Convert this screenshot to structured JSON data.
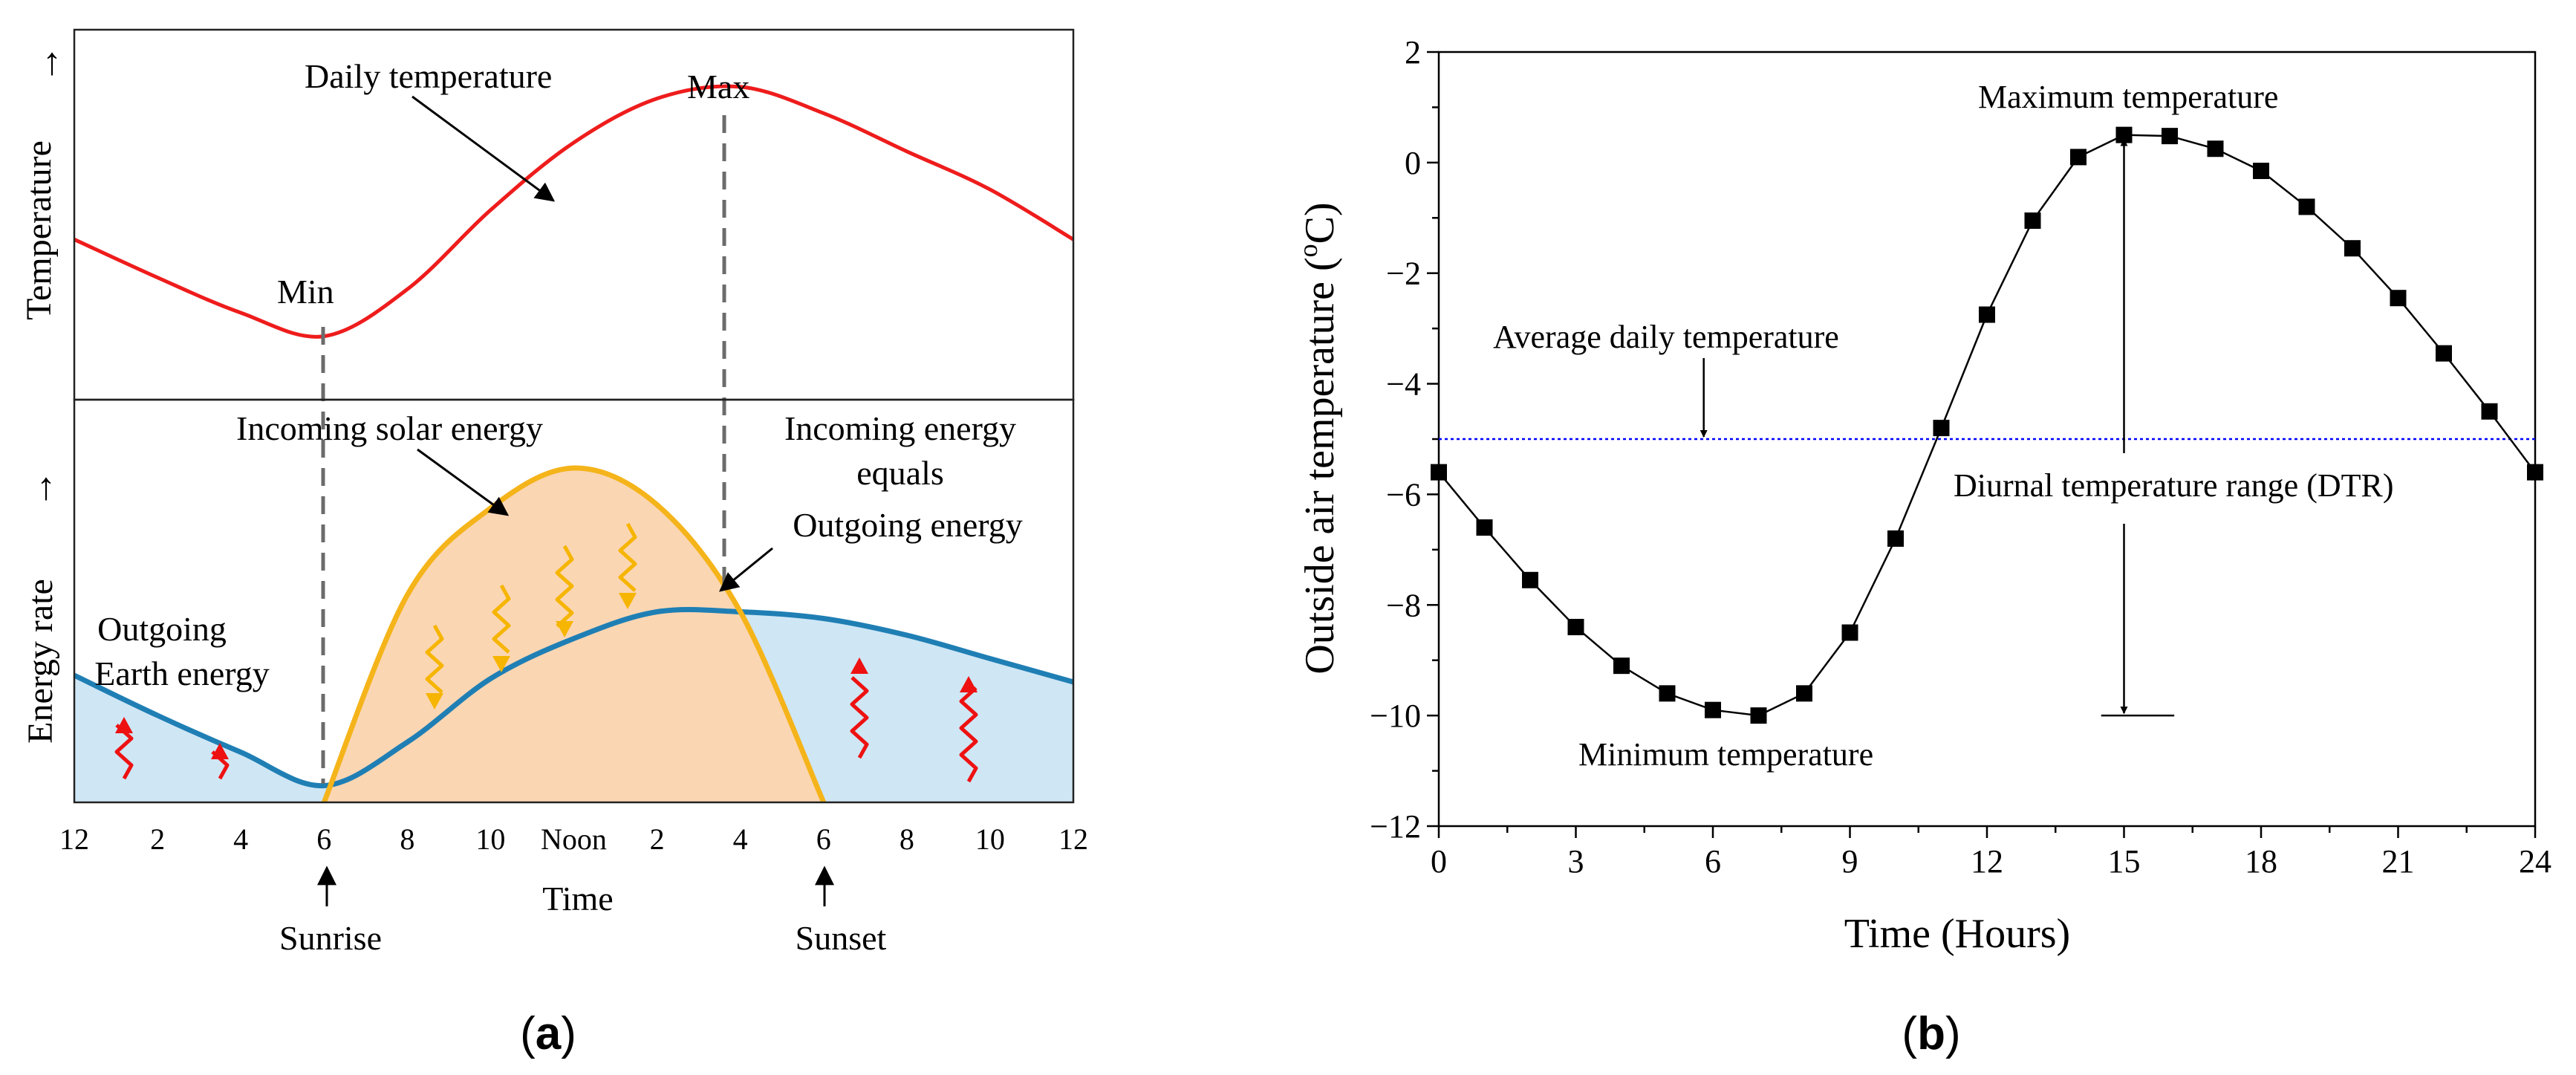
{
  "colors": {
    "temp_curve": "#ee1c1c",
    "solar_fill": "#fbd6b3",
    "solar_stroke": "#f4b41a",
    "earth_fill": "#cfe6f5",
    "earth_stroke": "#1f7fb4",
    "wavy_down": "#f6b500",
    "wavy_up": "#ee1111",
    "avg_line": "#0000ff",
    "dtr_label": "#1010dd"
  },
  "panel_a": {
    "label": "a",
    "top_ylabel": "Temperature",
    "bottom_ylabel": "Energy rate",
    "xlabel": "Time",
    "daily_temperature": "Daily temperature",
    "max_label": "Max",
    "min_label": "Min",
    "incoming_solar": "Incoming solar energy",
    "incoming_equals_1": "Incoming energy",
    "incoming_equals_2": "equals",
    "incoming_equals_3": "Outgoing energy",
    "outgoing_earth_1": "Outgoing",
    "outgoing_earth_2": "Earth energy",
    "sunrise": "Sunrise",
    "sunset": "Sunset",
    "arrow": "↑",
    "tick_labels": [
      "12",
      "2",
      "4",
      "6",
      "8",
      "10",
      "Noon",
      "2",
      "4",
      "6",
      "8",
      "10",
      "12"
    ]
  },
  "chart_data": [
    {
      "type": "area",
      "title": "(a)",
      "xlabel": "Time",
      "ylabel": "Temperature / Energy rate",
      "categories": [
        "12",
        "2",
        "4",
        "6",
        "8",
        "10",
        "Noon",
        "2",
        "4",
        "6",
        "8",
        "10",
        "12"
      ],
      "series": [
        {
          "name": "Daily temperature",
          "values": [
            0.45,
            0.32,
            0.2,
            0.12,
            0.28,
            0.55,
            0.78,
            0.93,
            0.97,
            0.88,
            0.75,
            0.62,
            0.45
          ]
        },
        {
          "name": "Incoming solar energy",
          "values": [
            0,
            0,
            0,
            0,
            0.62,
            0.88,
            1.0,
            0.89,
            0.57,
            0,
            0,
            0,
            0
          ]
        },
        {
          "name": "Outgoing Earth energy",
          "values": [
            0.38,
            0.26,
            0.15,
            0.05,
            0.18,
            0.37,
            0.49,
            0.57,
            0.57,
            0.55,
            0.5,
            0.43,
            0.36
          ]
        }
      ],
      "annotations": [
        "Daily temperature",
        "Max",
        "Min",
        "Incoming solar energy",
        "Incoming energy equals Outgoing energy",
        "Outgoing Earth energy",
        "Sunrise",
        "Sunset"
      ]
    },
    {
      "type": "line",
      "title": "(b)",
      "xlabel": "Time (Hours)",
      "ylabel": "Outside air temperature (°C)",
      "xlim": [
        0,
        24
      ],
      "ylim": [
        -12,
        2
      ],
      "x_ticks": [
        0,
        3,
        6,
        9,
        12,
        15,
        18,
        21,
        24
      ],
      "y_ticks": [
        -12,
        -10,
        -8,
        -6,
        -4,
        -2,
        0,
        2
      ],
      "x_tick_labels": [
        "0",
        "3",
        "6",
        "9",
        "12",
        "15",
        "18",
        "21",
        "24"
      ],
      "y_tick_labels": [
        "−12",
        "−10",
        "−8",
        "−6",
        "−4",
        "−2",
        "0",
        "2"
      ],
      "ylabel_main": "Outside air temperature (",
      "ylabel_deg": "o",
      "ylabel_tail": "C)",
      "series": [
        {
          "name": "Outside air temperature",
          "x": [
            0,
            1,
            2,
            3,
            4,
            5,
            6,
            7,
            8,
            9,
            10,
            11,
            12,
            13,
            14,
            15,
            16,
            17,
            18,
            19,
            20,
            21,
            22,
            23,
            24
          ],
          "y": [
            -5.6,
            -6.6,
            -7.55,
            -8.4,
            -9.1,
            -9.6,
            -9.9,
            -10.0,
            -9.6,
            -8.5,
            -6.8,
            -4.8,
            -2.75,
            -1.05,
            0.1,
            0.5,
            0.48,
            0.25,
            -0.15,
            -0.8,
            -1.55,
            -2.45,
            -3.45,
            -4.5,
            -5.6
          ]
        }
      ],
      "average": -5.0,
      "annotations": {
        "max": "Maximum temperature",
        "min": "Minimum temperature",
        "avg": "Average daily temperature",
        "dtr": "Diurnal temperature range (DTR)"
      },
      "label": "b"
    }
  ]
}
